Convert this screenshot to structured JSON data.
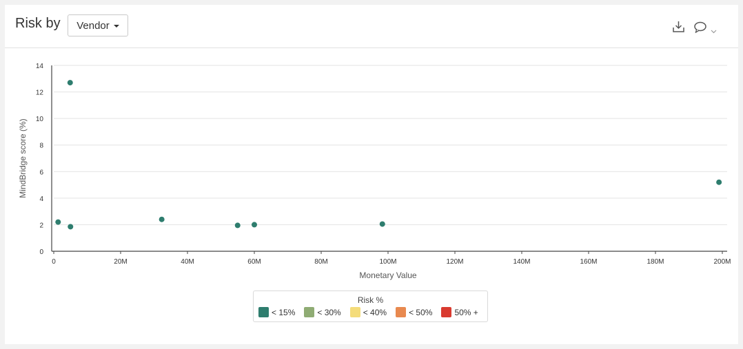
{
  "header": {
    "title": "Risk by",
    "dropdown_label": "Vendor",
    "download_icon": "download-icon",
    "comment_icon": "comment-icon",
    "chevron_icon": "chevron-down-icon"
  },
  "chart_data": {
    "type": "scatter",
    "xlabel": "Monetary Value",
    "ylabel": "MindBridge score (%)",
    "xlim": [
      0,
      200000000
    ],
    "ylim": [
      0,
      14
    ],
    "xticks": [
      0,
      20000000,
      40000000,
      60000000,
      80000000,
      100000000,
      120000000,
      140000000,
      160000000,
      180000000,
      200000000
    ],
    "xtick_labels": [
      "0",
      "20M",
      "40M",
      "60M",
      "80M",
      "100M",
      "120M",
      "140M",
      "160M",
      "180M",
      "200M"
    ],
    "yticks": [
      0,
      2,
      4,
      6,
      8,
      10,
      12,
      14
    ],
    "ytick_labels": [
      "0",
      "2",
      "4",
      "6",
      "8",
      "10",
      "12",
      "14"
    ],
    "grid": "horizontal",
    "point_color": "#2e7d6e",
    "series": [
      {
        "x": [
          1300000,
          4900000,
          5000000,
          32300000,
          55000000,
          60000000,
          98300000,
          199000000
        ],
        "y": [
          2.2,
          12.7,
          1.85,
          2.4,
          1.95,
          2.0,
          2.05,
          5.2
        ]
      }
    ]
  },
  "legend": {
    "title": "Risk %",
    "placement": "bottom-center",
    "items": [
      {
        "label": "< 15%",
        "color": "#2e7d6e"
      },
      {
        "label": "< 30%",
        "color": "#8fac74"
      },
      {
        "label": "< 40%",
        "color": "#f4dc7a"
      },
      {
        "label": "< 50%",
        "color": "#e8894f"
      },
      {
        "label": "50% +",
        "color": "#d93b30"
      }
    ]
  }
}
